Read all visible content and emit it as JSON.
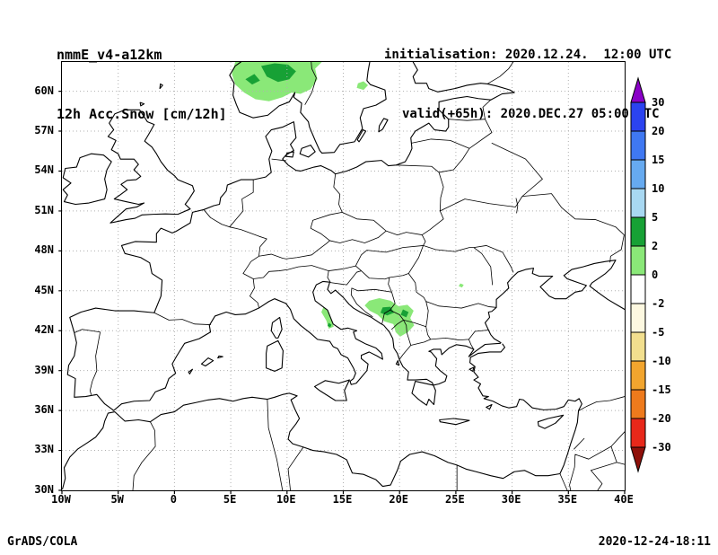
{
  "header": {
    "model": "nmmE_v4-a12km",
    "field": "12h Acc.Snow [cm/12h]",
    "init_line": "initialisation: 2020.12.24.  12:00 UTC",
    "valid_line": "valid(+65h): 2020.DEC.27 05:00 UTC"
  },
  "footer": {
    "left": "GrADS/COLA",
    "right": "2020-12-24-18:11"
  },
  "chart_data": {
    "type": "heatmap",
    "title": "12h Acc.Snow [cm/12h]",
    "model_run": "nmmE_v4-a12km",
    "initialisation": "2020.12.24. 12:00 UTC",
    "valid": "2020.DEC.27 05:00 UTC (+65h)",
    "units": "cm/12h",
    "projection": "equirectangular lat-lon over Europe",
    "lon_range_deg": [
      -10,
      40
    ],
    "lat_range_deg": [
      30,
      62.2
    ],
    "x_ticks": [
      "10W",
      "5W",
      "0",
      "5E",
      "10E",
      "15E",
      "20E",
      "25E",
      "30E",
      "35E",
      "40E"
    ],
    "y_ticks": [
      "60N",
      "57N",
      "54N",
      "51N",
      "48N",
      "45N",
      "42N",
      "39N",
      "36N",
      "33N",
      "30N"
    ],
    "grid": {
      "lon_step_deg": 5,
      "lat_step_deg": 3,
      "style": "dotted"
    },
    "colorbar": {
      "levels": [
        "30",
        "20",
        "15",
        "10",
        "5",
        "2",
        "0",
        "-2",
        "-5",
        "-10",
        "-15",
        "-20",
        "-30"
      ],
      "above_color": "#8a00c8",
      "segment_colors": [
        "#2b43f0",
        "#3f78f2",
        "#66aaf0",
        "#a8d8f2",
        "#17a135",
        "#8ae878",
        "#ffffff",
        "#fdf8e0",
        "#f2df8e",
        "#f2a52e",
        "#ee7a1c",
        "#e8281a"
      ],
      "below_color": "#8f100a",
      "legend_position": "right vertical"
    },
    "snow_regions": [
      {
        "name": "southern Norway / Scandes",
        "lon": [
          5.1,
          13.4
        ],
        "lat": [
          59.2,
          62.2
        ],
        "value_cm": "0-2 with 2-5 cores"
      },
      {
        "name": "central Sweden",
        "lon": [
          16.2,
          17.2
        ],
        "lat": [
          60.1,
          60.8
        ],
        "value_cm": "0-2"
      },
      {
        "name": "Dinaric Alps / western Balkans",
        "lon": [
          16.9,
          21.3
        ],
        "lat": [
          41.5,
          44.5
        ],
        "value_cm": "0-2 with 2-5 cores"
      },
      {
        "name": "central Apennines (Italy)",
        "lon": [
          13.0,
          14.2
        ],
        "lat": [
          42.1,
          43.8
        ],
        "value_cm": "0-2"
      },
      {
        "name": "southern Carpathians (Romania)",
        "lon": [
          25.2,
          25.7
        ],
        "lat": [
          45.2,
          45.6
        ],
        "value_cm": "0-2"
      }
    ]
  }
}
